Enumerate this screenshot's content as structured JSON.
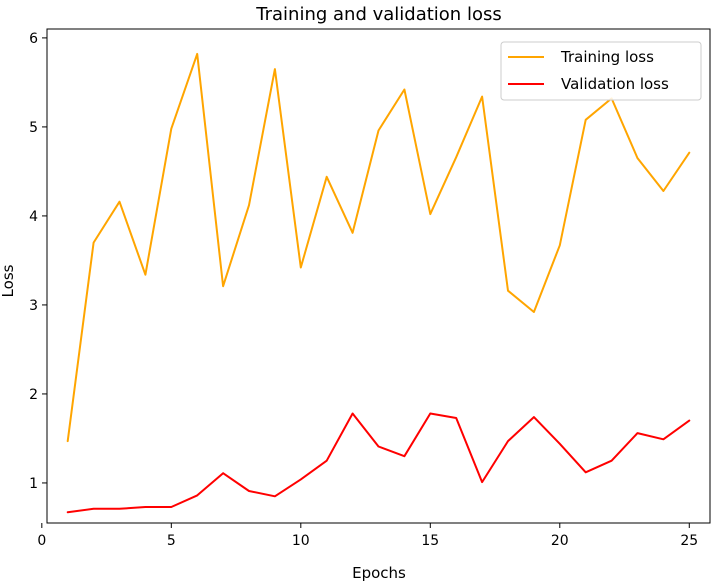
{
  "chart_data": {
    "type": "line",
    "title": "Training and validation loss",
    "xlabel": "Epochs",
    "ylabel": "Loss",
    "xlim": [
      0.2,
      25.8
    ],
    "ylim": [
      0.55,
      6.1
    ],
    "xticks": [
      0,
      5,
      10,
      15,
      20,
      25
    ],
    "yticks": [
      1,
      2,
      3,
      4,
      5,
      6
    ],
    "grid": false,
    "legend_position": "top-right",
    "x": [
      1,
      2,
      3,
      4,
      5,
      6,
      7,
      8,
      9,
      10,
      11,
      12,
      13,
      14,
      15,
      16,
      17,
      18,
      19,
      20,
      21,
      22,
      23,
      24,
      25
    ],
    "series": [
      {
        "name": "Training loss",
        "color": "#FFA500",
        "values": [
          1.47,
          3.7,
          4.16,
          3.34,
          4.98,
          5.82,
          3.21,
          4.12,
          5.65,
          3.42,
          4.44,
          3.81,
          4.96,
          5.42,
          4.02,
          4.66,
          5.34,
          3.16,
          2.92,
          3.67,
          5.08,
          5.32,
          4.65,
          4.28,
          4.71
        ]
      },
      {
        "name": "Validation loss",
        "color": "#FF0000",
        "values": [
          0.67,
          0.71,
          0.71,
          0.73,
          0.73,
          0.86,
          1.11,
          0.91,
          0.85,
          1.04,
          1.25,
          1.78,
          1.41,
          1.3,
          1.78,
          1.73,
          1.01,
          1.47,
          1.74,
          1.44,
          1.12,
          1.25,
          1.56,
          1.49,
          1.7
        ]
      }
    ]
  }
}
